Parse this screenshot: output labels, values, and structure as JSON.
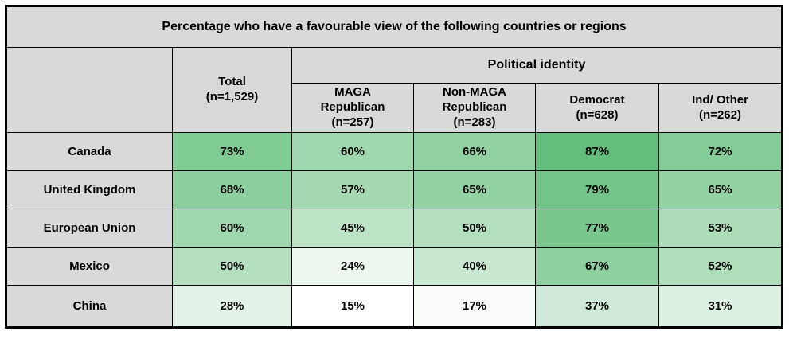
{
  "title": "Percentage who have a favourable view of the following countries or regions",
  "header": {
    "corner_label": "",
    "total_column": {
      "lines": [
        "Total",
        "(n=1,529)"
      ]
    },
    "group_label": "Political identity",
    "sub_columns": [
      {
        "lines": [
          "MAGA",
          "Republican",
          "(n=257)"
        ]
      },
      {
        "lines": [
          "Non-MAGA",
          "Republican",
          "(n=283)"
        ]
      },
      {
        "lines": [
          "Democrat",
          "(n=628)"
        ]
      },
      {
        "lines": [
          "Ind/ Other",
          "(n=262)"
        ]
      }
    ]
  },
  "chart_data": {
    "type": "table",
    "title": "Percentage who have a favourable view of the following countries or regions",
    "row_label_header": "",
    "columns": [
      "Total (n=1,529)",
      "MAGA Republican (n=257)",
      "Non-MAGA Republican (n=283)",
      "Democrat (n=628)",
      "Ind/ Other (n=262)"
    ],
    "column_group": {
      "label": "Political identity",
      "applies_to": [
        "MAGA Republican (n=257)",
        "Non-MAGA Republican (n=283)",
        "Democrat (n=628)",
        "Ind/ Other (n=262)"
      ]
    },
    "rows": [
      {
        "label": "Canada",
        "values": [
          73,
          60,
          66,
          87,
          72
        ]
      },
      {
        "label": "United Kingdom",
        "values": [
          68,
          57,
          65,
          79,
          65
        ]
      },
      {
        "label": "European Union",
        "values": [
          60,
          45,
          50,
          77,
          53
        ]
      },
      {
        "label": "Mexico",
        "values": [
          50,
          24,
          40,
          67,
          52
        ]
      },
      {
        "label": "China",
        "values": [
          28,
          15,
          17,
          37,
          31
        ]
      }
    ],
    "value_suffix": "%",
    "color_scale": {
      "type": "2-color",
      "min_value": 15,
      "max_value": 87,
      "min_color": "#FFFFFF",
      "max_color": "#63BE7B"
    }
  },
  "colors": {
    "header_bg": "#D9D9D9",
    "border": "#000000",
    "text": "#000000",
    "page_bg": "#FFFFFF"
  }
}
